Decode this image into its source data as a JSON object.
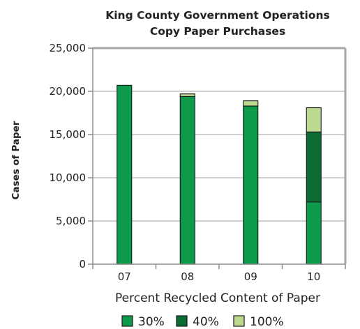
{
  "chart_data": {
    "type": "bar",
    "stacked": true,
    "title": "King County Government Operations",
    "subtitle": "Copy Paper Purchases",
    "xlabel": "Percent Recycled Content of Paper",
    "ylabel": "Cases of Paper",
    "categories": [
      "07",
      "08",
      "09",
      "10"
    ],
    "ylim": [
      0,
      25000
    ],
    "yticks": [
      0,
      5000,
      10000,
      15000,
      20000,
      25000
    ],
    "ytick_labels": [
      "0",
      "5,000",
      "10,000",
      "15,000",
      "20,000",
      "25,000"
    ],
    "grid": true,
    "legend_position": "bottom-right",
    "series": [
      {
        "name": "30%",
        "color": "#0e9a4b",
        "values": [
          20700,
          19400,
          18300,
          7200
        ]
      },
      {
        "name": "40%",
        "color": "#0b6b35",
        "values": [
          0,
          0,
          0,
          8100
        ]
      },
      {
        "name": "100%",
        "color": "#bcd990",
        "values": [
          0,
          300,
          600,
          2800
        ]
      }
    ]
  }
}
